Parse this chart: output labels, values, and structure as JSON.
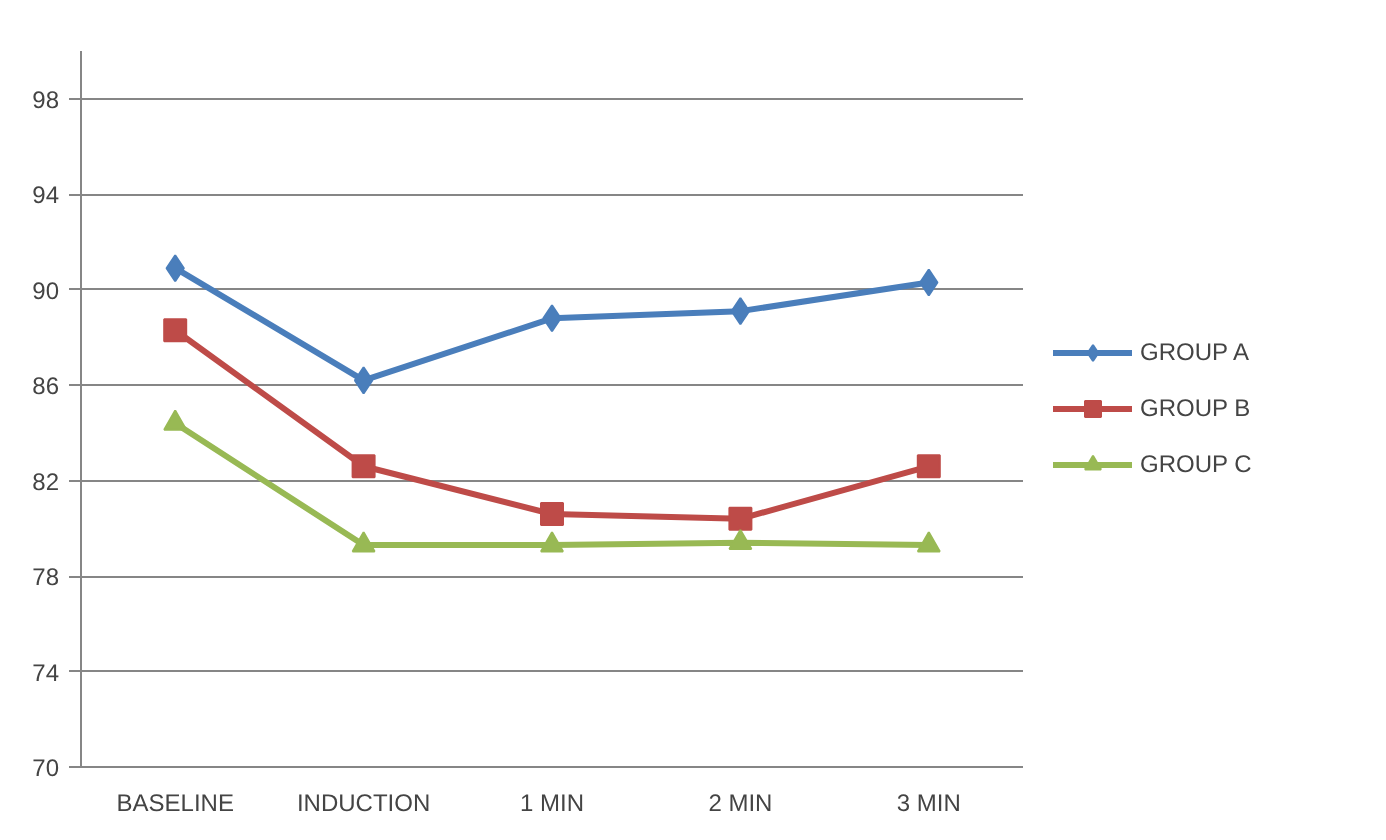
{
  "chart_data": {
    "type": "line",
    "categories": [
      "BASELINE",
      "INDUCTION",
      "1 MIN",
      "2 MIN",
      "3 MIN"
    ],
    "series": [
      {
        "name": "GROUP A",
        "color": "#4a7ebb",
        "marker": "diamond",
        "values": [
          90.9,
          86.2,
          88.8,
          89.1,
          90.3
        ]
      },
      {
        "name": "GROUP B",
        "color": "#be4b48",
        "marker": "square",
        "values": [
          88.3,
          82.6,
          80.6,
          80.4,
          82.6
        ]
      },
      {
        "name": "GROUP C",
        "color": "#98b954",
        "marker": "triangle",
        "values": [
          84.4,
          79.3,
          79.3,
          79.4,
          79.3
        ]
      }
    ],
    "ylim": [
      70,
      100
    ],
    "yticks": [
      70,
      74,
      78,
      82,
      86,
      90,
      94,
      98
    ],
    "grid": "y",
    "legend": "right",
    "line_style": "solid"
  }
}
